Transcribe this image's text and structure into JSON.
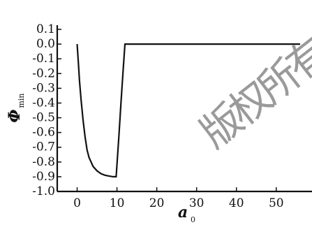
{
  "chart_data": {
    "type": "line",
    "xlabel": "a",
    "xlabel_sub": "0",
    "ylabel": "Φ",
    "ylabel_sub": "min",
    "xlim": [
      -5,
      56
    ],
    "ylim": [
      -1.0,
      0.1
    ],
    "x_ticks": [
      0,
      10,
      20,
      30,
      40,
      50
    ],
    "x_tick_labels": [
      "0",
      "10",
      "20",
      "30",
      "40",
      "50"
    ],
    "y_ticks": [
      0.1,
      0.0,
      -0.1,
      -0.2,
      -0.3,
      -0.4,
      -0.5,
      -0.6,
      -0.7,
      -0.8,
      -0.9,
      -1.0
    ],
    "y_tick_labels": [
      "0.1",
      "0.0",
      "-0.1",
      "-0.2",
      "-0.3",
      "-0.4",
      "-0.5",
      "-0.6",
      "-0.7",
      "-0.8",
      "-0.9",
      "-1.0"
    ],
    "grid": false,
    "series": [
      {
        "x": [
          0.0,
          0.3,
          0.6,
          1.0,
          1.5,
          2.0,
          2.5,
          3.0,
          3.5,
          4.0,
          5.0,
          6.0,
          7.0,
          8.0,
          9.0,
          9.8,
          10.5,
          11.0,
          11.5,
          12.0,
          20,
          30,
          40,
          50,
          56
        ],
        "y": [
          0.0,
          -0.12,
          -0.25,
          -0.38,
          -0.52,
          -0.63,
          -0.72,
          -0.77,
          -0.8,
          -0.83,
          -0.86,
          -0.88,
          -0.89,
          -0.895,
          -0.9,
          -0.9,
          -0.62,
          -0.4,
          -0.2,
          0.0,
          0.0,
          0.0,
          0.0,
          0.0,
          0.0
        ]
      }
    ],
    "line_color": "#111111"
  },
  "watermark": {
    "text": "版权所有",
    "color": "#9a9a9a"
  }
}
